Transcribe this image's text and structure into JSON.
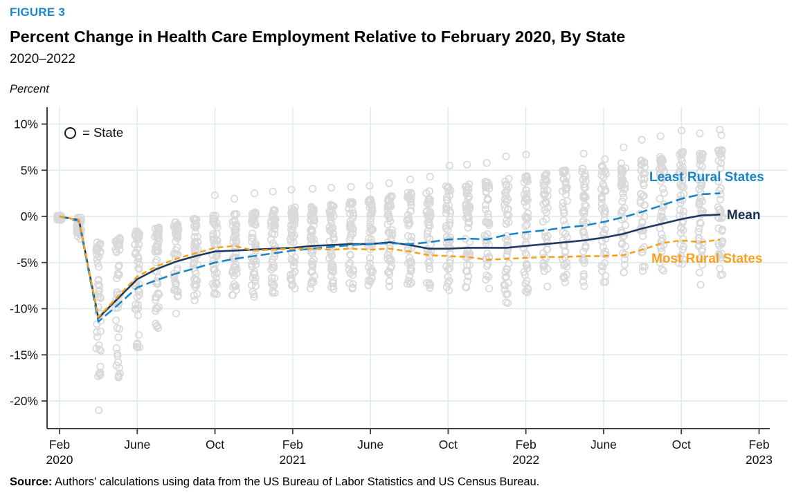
{
  "header": {
    "figure_label": "FIGURE 3",
    "title": "Percent Change in Health Care Employment Relative to February 2020, By State",
    "subtitle": "2020–2022",
    "axis_units_note": "Percent"
  },
  "marker_legend": {
    "symbol": "open-circle",
    "label": "= State"
  },
  "line_labels": {
    "least": "Least Rural States",
    "mean": "Mean",
    "most": "Most Rural States"
  },
  "source": {
    "prefix": "Source:",
    "text": " Authors' calculations using data from the US Bureau of Labor Statistics and US Census Bureau."
  },
  "colors": {
    "figure_label_blue": "#1b87c6",
    "least_rural_blue": "#1b84c8",
    "mean_navy": "#1e3a5e",
    "mean_label_navy": "#1b2f52",
    "most_rural_orange": "#f9a11d",
    "scatter_gray": "#d9d9d9",
    "gridline": "#dce9ed",
    "axis": "#3f3f3f"
  },
  "chart_data": {
    "type": "line",
    "title": "Percent Change in Health Care Employment Relative to February 2020, By State",
    "xlabel": "",
    "ylabel": "Percent",
    "x_unit": "months since Feb 2020 (monthly, Feb 2020 = 0)",
    "xlim_months": [
      0,
      36
    ],
    "ylim": [
      -22,
      11
    ],
    "grid": true,
    "legend_position": "line-end-labels",
    "y_ticks": [
      {
        "v": 10,
        "label": "10%"
      },
      {
        "v": 5,
        "label": "5%"
      },
      {
        "v": 0,
        "label": "0%"
      },
      {
        "v": -5,
        "label": "-5%"
      },
      {
        "v": -10,
        "label": "-10%"
      },
      {
        "v": -15,
        "label": "-15%"
      },
      {
        "v": -20,
        "label": "-20%"
      }
    ],
    "x_ticks": [
      {
        "m": 0,
        "label": "Feb",
        "year": "2020"
      },
      {
        "m": 4,
        "label": "June",
        "year": ""
      },
      {
        "m": 8,
        "label": "Oct",
        "year": ""
      },
      {
        "m": 12,
        "label": "Feb",
        "year": "2021"
      },
      {
        "m": 16,
        "label": "June",
        "year": ""
      },
      {
        "m": 20,
        "label": "Oct",
        "year": ""
      },
      {
        "m": 24,
        "label": "Feb",
        "year": "2022"
      },
      {
        "m": 28,
        "label": "June",
        "year": ""
      },
      {
        "m": 32,
        "label": "Oct",
        "year": ""
      },
      {
        "m": 36,
        "label": "Feb",
        "year": "2023"
      }
    ],
    "series": [
      {
        "name": "Least Rural States",
        "color": "#1b84c8",
        "style": "long-dash",
        "values": [
          0,
          -0.5,
          -11.4,
          -9.6,
          -7.7,
          -6.9,
          -6.2,
          -5.6,
          -5.0,
          -4.6,
          -4.3,
          -4.0,
          -3.7,
          -3.5,
          -3.3,
          -3.1,
          -3.0,
          -2.9,
          -3.0,
          -2.8,
          -2.5,
          -2.4,
          -2.5,
          -2.0,
          -1.7,
          -1.5,
          -1.2,
          -1.0,
          -0.6,
          -0.1,
          0.5,
          1.2,
          1.9,
          2.4,
          2.5
        ]
      },
      {
        "name": "Mean",
        "color": "#1e3a5e",
        "style": "solid",
        "values": [
          0,
          -0.4,
          -11.0,
          -8.9,
          -6.8,
          -5.7,
          -4.9,
          -4.3,
          -3.8,
          -3.7,
          -3.6,
          -3.5,
          -3.4,
          -3.2,
          -3.1,
          -3.0,
          -3.0,
          -2.8,
          -3.1,
          -3.5,
          -3.5,
          -3.4,
          -3.4,
          -3.4,
          -3.2,
          -3.0,
          -2.8,
          -2.6,
          -2.3,
          -1.9,
          -1.3,
          -0.8,
          -0.3,
          0.1,
          0.2
        ]
      },
      {
        "name": "Most Rural States",
        "color": "#f9a11d",
        "style": "dash",
        "values": [
          0,
          -0.4,
          -10.9,
          -8.7,
          -6.5,
          -5.4,
          -4.6,
          -4.0,
          -3.4,
          -3.2,
          -3.7,
          -3.6,
          -3.5,
          -3.5,
          -3.6,
          -3.5,
          -3.6,
          -3.5,
          -3.8,
          -4.2,
          -4.3,
          -4.4,
          -4.7,
          -4.6,
          -4.5,
          -4.4,
          -4.4,
          -4.3,
          -4.3,
          -4.2,
          -3.6,
          -2.9,
          -2.6,
          -2.8,
          -2.5
        ]
      }
    ],
    "scatter_marker": "open gray circle = one state per month",
    "scatter_columns_format": "[month_index, bulk_low_pct, bulk_high_pct, n_states, [outlier_pcts]]",
    "scatter_columns": [
      [
        0,
        -0.4,
        0.1,
        32,
        []
      ],
      [
        1,
        -2.6,
        -0.1,
        46,
        []
      ],
      [
        2,
        -18.0,
        -2.8,
        47,
        [
          -21.0
        ]
      ],
      [
        3,
        -18.5,
        -2.2,
        47,
        []
      ],
      [
        4,
        -15.6,
        -1.6,
        47,
        []
      ],
      [
        5,
        -12.4,
        -1.2,
        47,
        []
      ],
      [
        6,
        -10.6,
        -0.6,
        47,
        []
      ],
      [
        7,
        -9.6,
        -0.2,
        47,
        []
      ],
      [
        8,
        -8.8,
        0.2,
        46,
        [
          2.3
        ]
      ],
      [
        9,
        -8.6,
        0.3,
        46,
        [
          1.9
        ]
      ],
      [
        10,
        -8.8,
        0.5,
        46,
        [
          2.5
        ]
      ],
      [
        11,
        -8.4,
        0.7,
        46,
        [
          2.7
        ]
      ],
      [
        12,
        -8.2,
        1.0,
        46,
        [
          2.9
        ]
      ],
      [
        13,
        -8.0,
        1.1,
        46,
        [
          3.0
        ]
      ],
      [
        14,
        -8.0,
        1.3,
        46,
        [
          3.1
        ]
      ],
      [
        15,
        -7.9,
        1.6,
        46,
        [
          3.2
        ]
      ],
      [
        16,
        -7.8,
        1.9,
        46,
        [
          3.3
        ]
      ],
      [
        17,
        -7.6,
        2.3,
        46,
        [
          3.6
        ]
      ],
      [
        18,
        -7.9,
        2.6,
        46,
        [
          4.0
        ]
      ],
      [
        19,
        -8.0,
        2.9,
        46,
        [
          4.3
        ]
      ],
      [
        20,
        -8.2,
        3.3,
        46,
        [
          5.5
        ]
      ],
      [
        21,
        -8.0,
        3.6,
        46,
        [
          5.6
        ]
      ],
      [
        22,
        -9.2,
        3.9,
        46,
        [
          5.8
        ]
      ],
      [
        23,
        -9.6,
        4.1,
        46,
        [
          6.5
        ]
      ],
      [
        24,
        -8.6,
        4.4,
        46,
        [
          6.7
        ]
      ],
      [
        25,
        -8.2,
        4.7,
        46,
        []
      ],
      [
        26,
        -7.8,
        5.0,
        46,
        []
      ],
      [
        27,
        -7.6,
        5.2,
        46,
        [
          6.8
        ]
      ],
      [
        28,
        -7.2,
        5.5,
        46,
        [
          6.2
        ]
      ],
      [
        29,
        -6.6,
        5.8,
        46,
        [
          7.5
        ]
      ],
      [
        30,
        -6.3,
        6.1,
        46,
        [
          8.3
        ]
      ],
      [
        31,
        -6.0,
        6.5,
        46,
        [
          8.7
        ]
      ],
      [
        32,
        -5.8,
        7.0,
        46,
        [
          9.3
        ]
      ],
      [
        33,
        -6.1,
        7.0,
        46,
        [
          9.0,
          -7.4
        ]
      ],
      [
        34,
        -7.4,
        7.2,
        46,
        [
          9.4,
          8.8
        ]
      ]
    ]
  }
}
